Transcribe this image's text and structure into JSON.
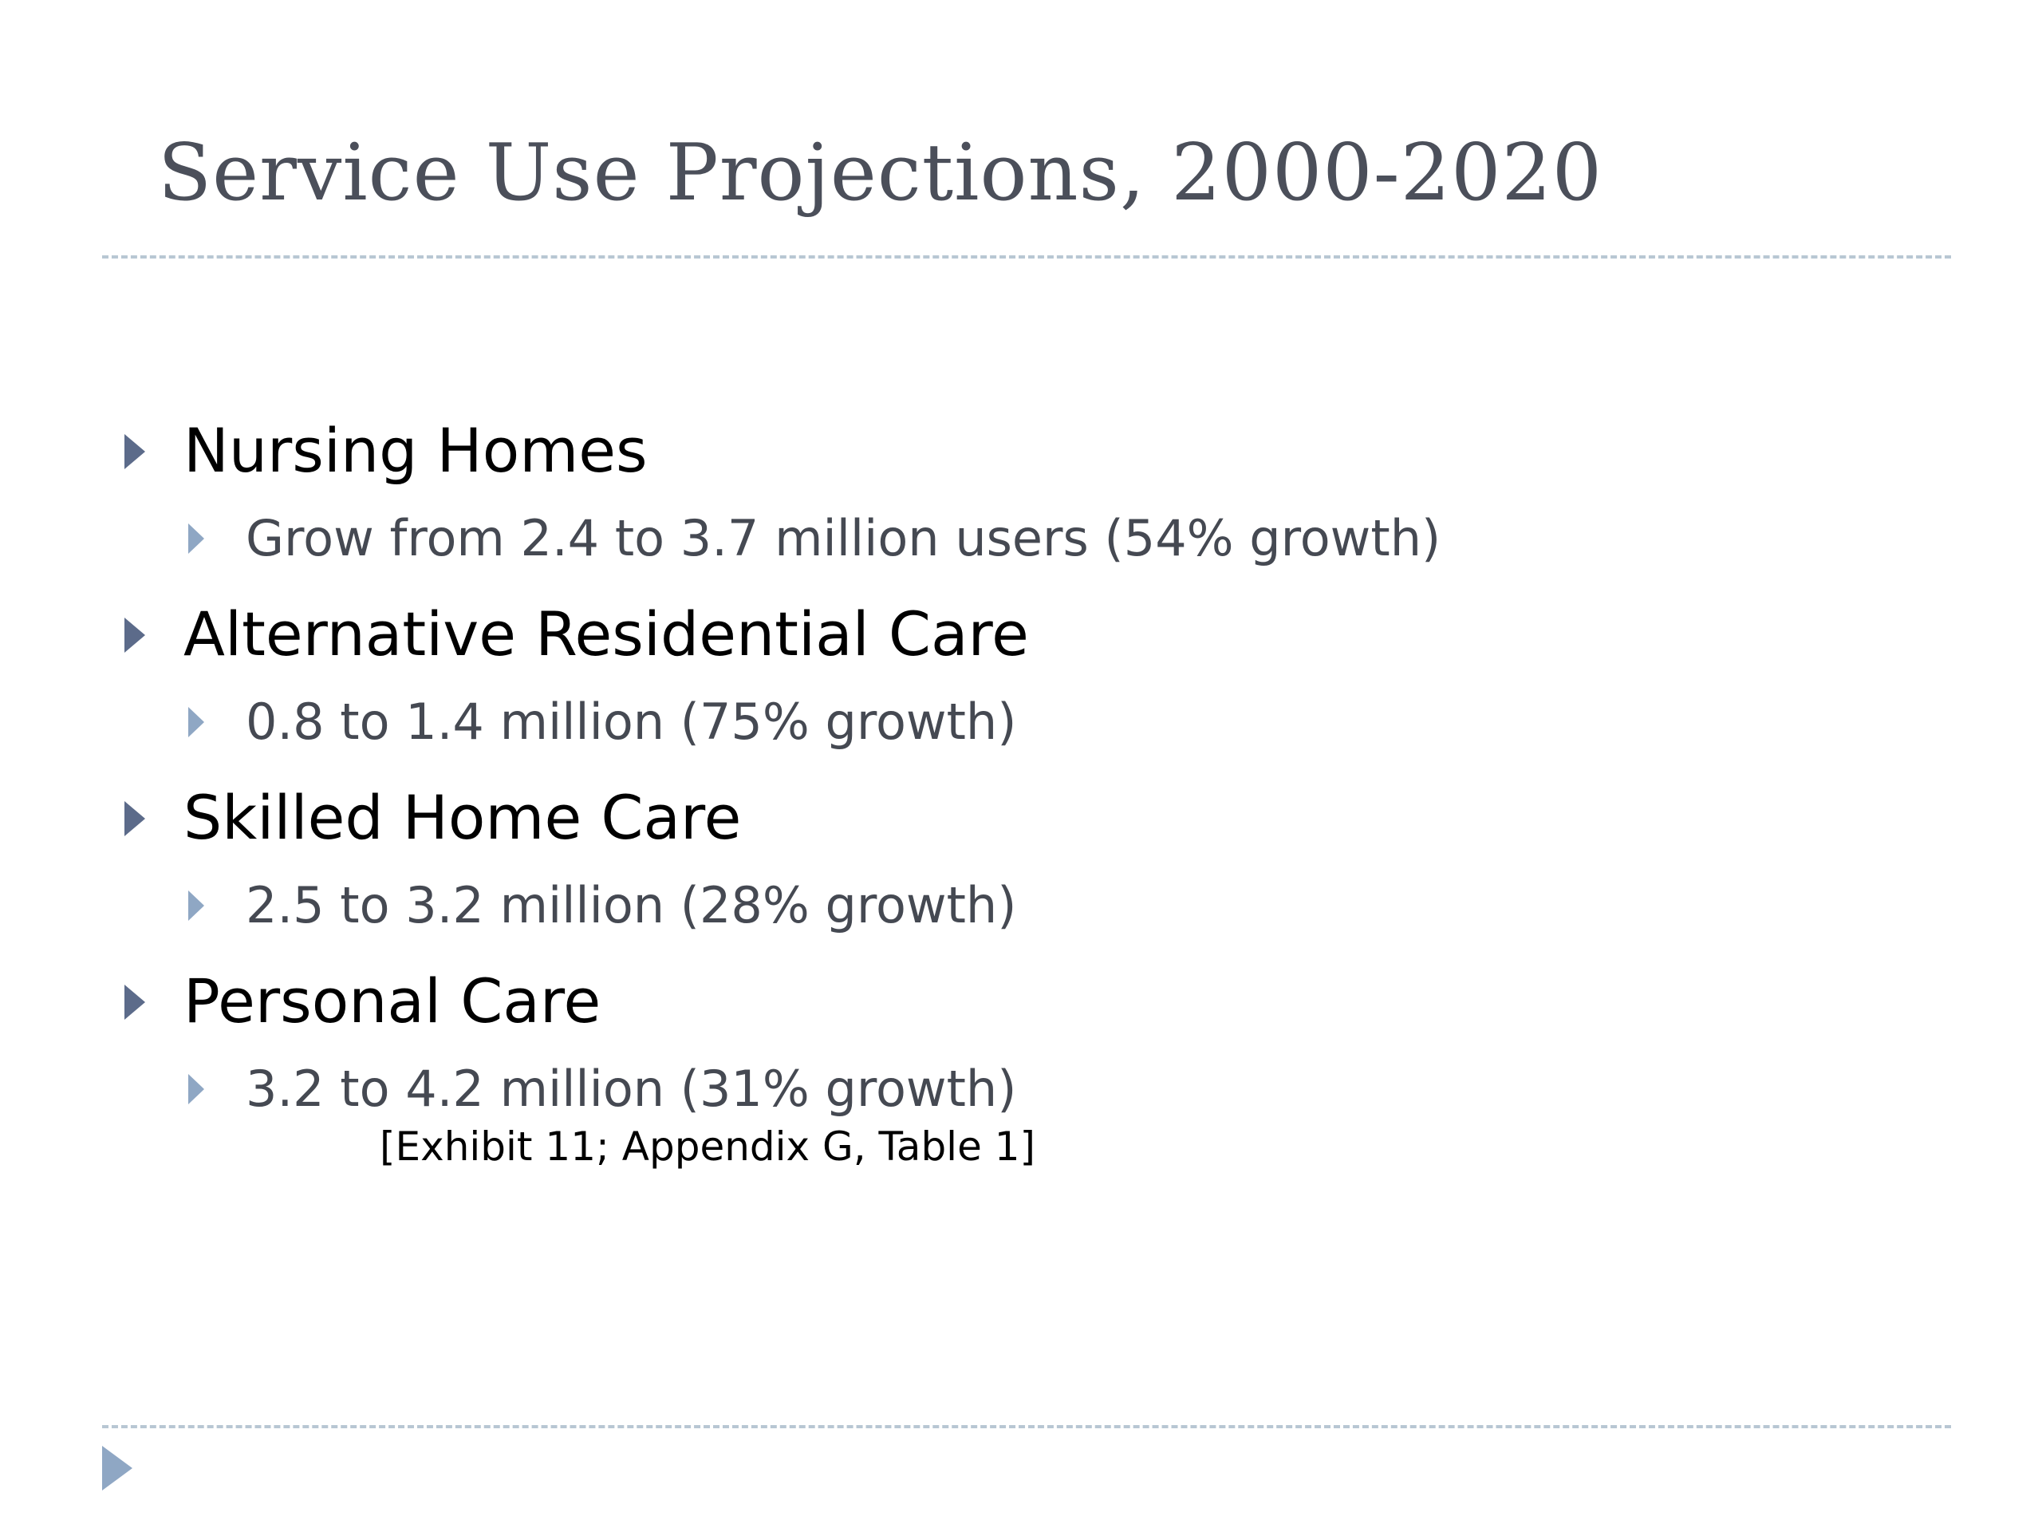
{
  "slide": {
    "title": "Service Use Projections, 2000-2020",
    "bullets": [
      {
        "heading": "Nursing Homes",
        "detail": "Grow from 2.4 to 3.7 million users (54% growth)"
      },
      {
        "heading": "Alternative Residential Care",
        "detail": "0.8 to 1.4 million (75% growth)"
      },
      {
        "heading": "Skilled Home Care",
        "detail": "2.5 to 3.2 million (28% growth)"
      },
      {
        "heading": "Personal Care",
        "detail": "3.2 to 4.2 million (31% growth)"
      }
    ],
    "citation": "[Exhibit 11; Appendix G, Table 1]"
  },
  "colors": {
    "title": "#4b4f5a",
    "level1_bullet": "#5c6b8a",
    "level2_bullet": "#8fa7c4",
    "divider": "#b8c7d3"
  },
  "icons": {
    "level1_bullet": "triangle-right-icon",
    "level2_bullet": "triangle-right-icon",
    "footer_marker": "triangle-right-icon"
  }
}
